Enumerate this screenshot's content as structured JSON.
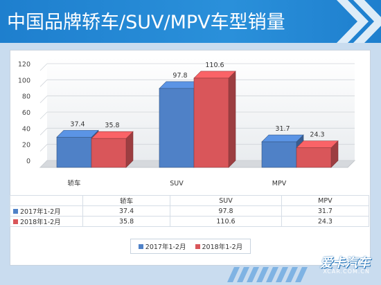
{
  "header": {
    "title": "中国品牌轿车/SUV/MPV车型销量"
  },
  "chart_data": {
    "type": "bar",
    "categories": [
      "轿车",
      "SUV",
      "MPV"
    ],
    "series": [
      {
        "name": "2017年1-2月",
        "values": [
          37.4,
          97.8,
          31.7
        ],
        "color": "#4f81c7"
      },
      {
        "name": "2018年1-2月",
        "values": [
          35.8,
          110.6,
          24.3
        ],
        "color": "#d9565a"
      }
    ],
    "yticks": [
      "0",
      "20",
      "40",
      "60",
      "80",
      "100",
      "120"
    ],
    "value_labels": [
      [
        "37.4",
        "97.8",
        "31.7"
      ],
      [
        "35.8",
        "110.6",
        "24.3"
      ]
    ],
    "ylim": [
      0,
      120
    ],
    "grid": true,
    "legend_position": "bottom"
  },
  "table": {
    "header": [
      "",
      "轿车",
      "SUV",
      "MPV"
    ],
    "rows": [
      {
        "label": "2017年1-2月",
        "values": [
          "37.4",
          "97.8",
          "31.7"
        ]
      },
      {
        "label": "2018年1-2月",
        "values": [
          "35.8",
          "110.6",
          "24.3"
        ]
      }
    ]
  },
  "legend": [
    "2017年1-2月",
    "2018年1-2月"
  ],
  "logo": {
    "main": "爱卡汽车",
    "sub": "XCAR.COM.CN"
  }
}
